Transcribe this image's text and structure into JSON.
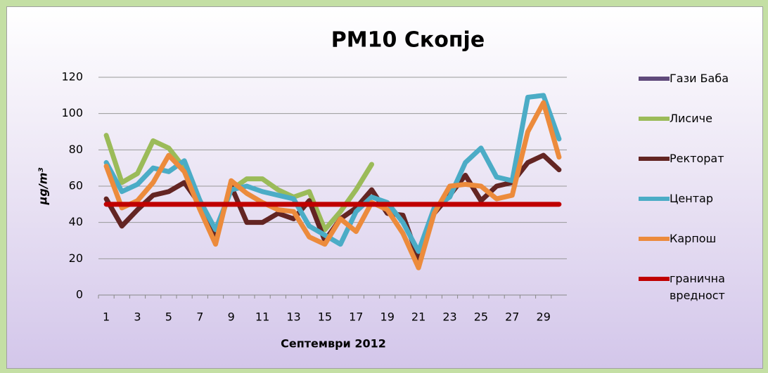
{
  "chart_data": {
    "type": "line",
    "title": "PM10 Скопје",
    "xlabel": "Септември 2012",
    "ylabel": "μg/m³",
    "categories": [
      "1",
      null,
      "3",
      null,
      "5",
      null,
      "7",
      null,
      "9",
      null,
      "11",
      null,
      "13",
      null,
      "15",
      null,
      "17",
      null,
      "19",
      null,
      "21",
      null,
      "23",
      null,
      "25",
      null,
      "27",
      null,
      "29",
      null
    ],
    "ylim": [
      0,
      120
    ],
    "yticks": [
      0,
      20,
      40,
      60,
      80,
      100,
      120
    ],
    "grid": true,
    "legend": "right",
    "series": [
      {
        "name": "Гази Баба",
        "color": "#604a7b",
        "values": [
          null,
          null,
          null,
          null,
          null,
          null,
          null,
          null,
          null,
          null,
          null,
          null,
          null,
          null,
          null,
          null,
          null,
          null,
          null,
          null,
          null,
          null,
          null,
          null,
          null,
          null,
          null,
          null,
          null,
          null
        ]
      },
      {
        "name": "Лисиче",
        "color": "#9bbb59",
        "values": [
          88,
          62,
          67,
          85,
          81,
          70,
          52,
          35,
          58,
          64,
          64,
          58,
          54,
          57,
          36,
          46,
          58,
          72,
          null,
          null,
          null,
          null,
          null,
          null,
          null,
          null,
          null,
          null,
          null,
          null
        ]
      },
      {
        "name": "Ректорат",
        "color": "#632523",
        "values": [
          53,
          38,
          47,
          55,
          57,
          62,
          50,
          32,
          60,
          40,
          40,
          45,
          42,
          52,
          30,
          42,
          48,
          58,
          45,
          44,
          20,
          45,
          55,
          66,
          52,
          60,
          62,
          73,
          77,
          69
        ]
      },
      {
        "name": "Центар",
        "color": "#4bacc6",
        "values": [
          73,
          57,
          61,
          70,
          68,
          74,
          52,
          36,
          58,
          60,
          57,
          55,
          53,
          38,
          33,
          28,
          46,
          54,
          51,
          40,
          24,
          48,
          54,
          73,
          81,
          65,
          63,
          109,
          110,
          86
        ]
      },
      {
        "name": "Карпош",
        "color": "#ec8b3c",
        "values": [
          71,
          48,
          52,
          62,
          77,
          68,
          47,
          28,
          63,
          56,
          51,
          47,
          46,
          32,
          28,
          42,
          35,
          51,
          47,
          34,
          15,
          45,
          60,
          61,
          60,
          53,
          55,
          90,
          106,
          76
        ]
      },
      {
        "name": "гранична вредност",
        "color": "#c00000",
        "values": [
          50,
          50,
          50,
          50,
          50,
          50,
          50,
          50,
          50,
          50,
          50,
          50,
          50,
          50,
          50,
          50,
          50,
          50,
          50,
          50,
          50,
          50,
          50,
          50,
          50,
          50,
          50,
          50,
          50,
          50
        ]
      }
    ]
  }
}
